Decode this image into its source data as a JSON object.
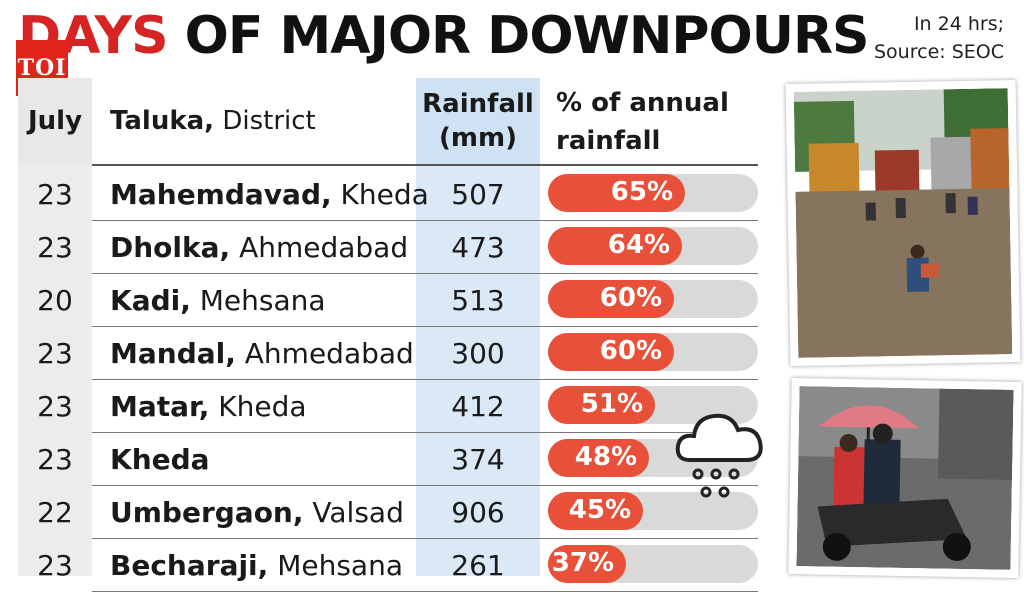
{
  "header": {
    "title_red": "DAYS",
    "title_black": " OF MAJOR DOWNPOURS",
    "source_line1": "In 24 hrs;",
    "source_line2": "Source: SEOC",
    "logo_text": "TOI"
  },
  "chart_data": {
    "type": "table",
    "columns": [
      "July",
      "Taluka, District",
      "Rainfall (mm)",
      "% of annual rainfall"
    ],
    "column_labels": {
      "july": "July",
      "taluka_bold": "Taluka,",
      "taluka_rest": " District",
      "rain_line1": "Rainfall",
      "rain_line2": "(mm)",
      "pct_line1": "% of annual",
      "pct_line2": "rainfall"
    },
    "rows": [
      {
        "july": "23",
        "taluka": "Mahemdavad,",
        "district": " Kheda",
        "rainfall": "507",
        "pct_label": "65%",
        "pct": 65
      },
      {
        "july": "23",
        "taluka": "Dholka,",
        "district": " Ahmedabad",
        "rainfall": "473",
        "pct_label": "64%",
        "pct": 64
      },
      {
        "july": "20",
        "taluka": "Kadi,",
        "district": " Mehsana",
        "rainfall": "513",
        "pct_label": "60%",
        "pct": 60
      },
      {
        "july": "23",
        "taluka": "Mandal,",
        "district": " Ahmedabad",
        "rainfall": "300",
        "pct_label": "60%",
        "pct": 60
      },
      {
        "july": "23",
        "taluka": "Matar,",
        "district": " Kheda",
        "rainfall": "412",
        "pct_label": "51%",
        "pct": 51
      },
      {
        "july": "23",
        "taluka": "Kheda",
        "district": "",
        "rainfall": "374",
        "pct_label": "48%",
        "pct": 48
      },
      {
        "july": "22",
        "taluka": "Umbergaon,",
        "district": " Valsad",
        "rainfall": "906",
        "pct_label": "45%",
        "pct": 45
      },
      {
        "july": "23",
        "taluka": "Becharaji,",
        "district": " Mehsana",
        "rainfall": "261",
        "pct_label": "37%",
        "pct": 37
      }
    ],
    "bar_color": "#e8503a",
    "track_color": "#d9d9d9"
  },
  "icons": {
    "rain_cloud": "rain-cloud-icon"
  }
}
